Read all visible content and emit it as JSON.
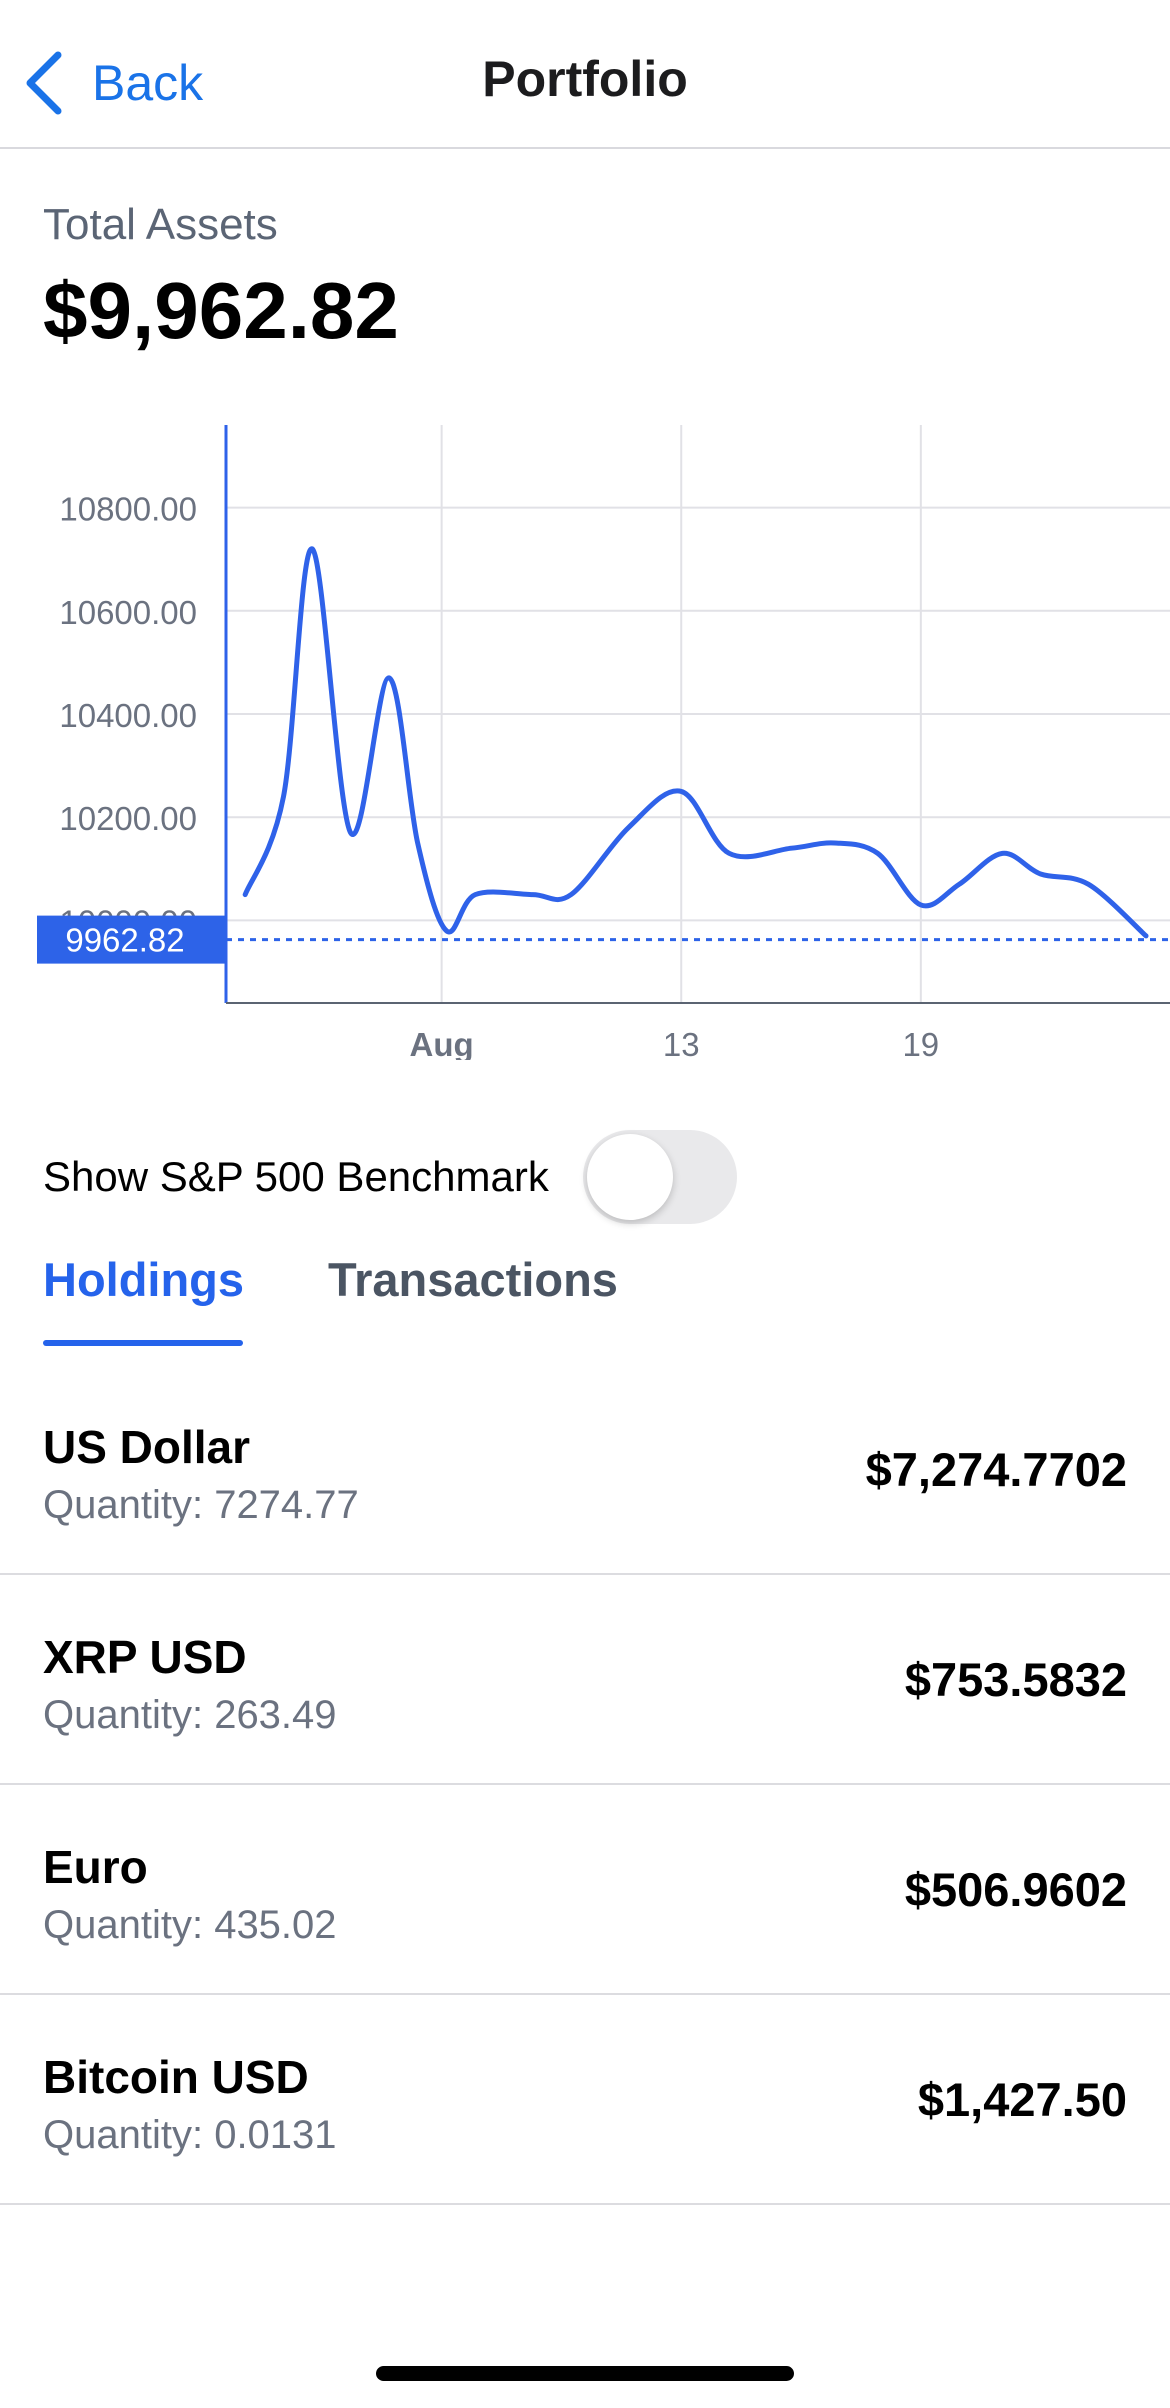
{
  "nav": {
    "back_label": "Back",
    "title": "Portfolio"
  },
  "summary": {
    "label": "Total Assets",
    "value": "$9,962.82"
  },
  "chart_data": {
    "type": "line",
    "title": "",
    "xlabel": "",
    "ylabel": "",
    "ylim": [
      9840,
      10960
    ],
    "yticks": [
      "10800.00",
      "10600.00",
      "10400.00",
      "10200.00",
      "10000.00"
    ],
    "ytick_values": [
      10800,
      10600,
      10400,
      10200,
      10000
    ],
    "xticks": [
      {
        "label": "Aug",
        "x": 8.5
      },
      {
        "label": "13",
        "x": 13.5
      },
      {
        "label": "19",
        "x": 18.5
      }
    ],
    "xlim": [
      4,
      23.7
    ],
    "current_label": "9962.82",
    "current_value": 9962.82,
    "series": [
      {
        "x": [
          4.4,
          5.2,
          5.8,
          6.6,
          7.4,
          8.0,
          8.6,
          9.2,
          10.4,
          11.2,
          12.4,
          13.5,
          14.5,
          15.8,
          16.7,
          17.6,
          18.5,
          19.3,
          20.2,
          21.0,
          22.0,
          23.2
        ],
        "values": [
          10050,
          10240,
          10720,
          10170,
          10470,
          10150,
          9980,
          10050,
          10050,
          10050,
          10180,
          10250,
          10130,
          10140,
          10150,
          10130,
          10030,
          10070,
          10130,
          10090,
          10070,
          9970
        ]
      }
    ],
    "colors": {
      "line": "#2f62e9",
      "label_bg": "#2d63e8"
    }
  },
  "benchmark": {
    "label": "Show S&P 500 Benchmark",
    "enabled": false
  },
  "tabs": [
    {
      "label": "Holdings",
      "active": true
    },
    {
      "label": "Transactions",
      "active": false
    }
  ],
  "holdings": [
    {
      "name": "US Dollar",
      "quantity": "Quantity: 7274.77",
      "value": "$7,274.7702"
    },
    {
      "name": "XRP USD",
      "quantity": "Quantity: 263.49",
      "value": "$753.5832"
    },
    {
      "name": "Euro",
      "quantity": "Quantity: 435.02",
      "value": "$506.9602"
    },
    {
      "name": "Bitcoin USD",
      "quantity": "Quantity: 0.0131",
      "value": "$1,427.50"
    }
  ]
}
